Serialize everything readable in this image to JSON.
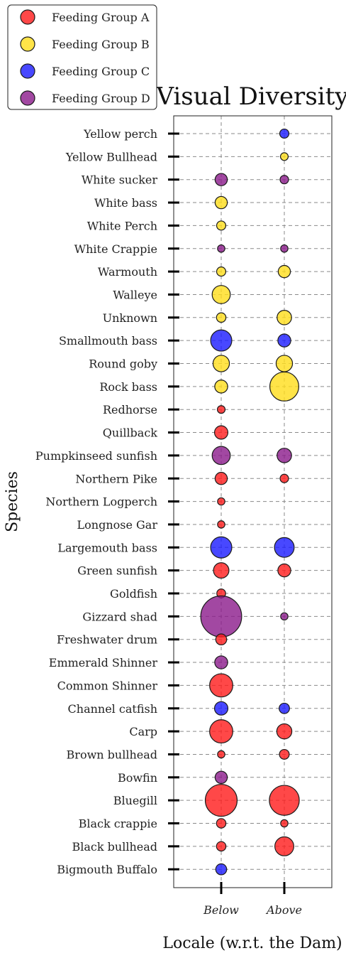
{
  "chart_data": {
    "type": "scatter",
    "title": "Visual Diversity",
    "xlabel": "Locale (w.r.t. the Dam)",
    "ylabel": "Species",
    "x_categories": [
      "Below",
      "Above"
    ],
    "y_categories": [
      "Yellow perch",
      "Yellow Bullhead",
      "White sucker",
      "White bass",
      "White Perch",
      "White Crappie",
      "Warmouth",
      "Walleye",
      "Unknown",
      "Smallmouth bass",
      "Round goby",
      "Rock bass",
      "Redhorse",
      "Quillback",
      "Pumpkinseed sunfish",
      "Northern Pike",
      "Northern Logperch",
      "Longnose Gar",
      "Largemouth bass",
      "Green sunfish",
      "Goldfish",
      "Gizzard shad",
      "Freshwater drum",
      "Emmerald Shinner",
      "Common Shinner",
      "Channel catfish",
      "Carp",
      "Brown bullhead",
      "Bowfin",
      "Bluegill",
      "Black crappie",
      "Black bullhead",
      "Bigmouth Buffalo"
    ],
    "grid": true,
    "legend_position": "top-left",
    "groups": [
      {
        "name": "Feeding Group A",
        "color": "#ff1a1a"
      },
      {
        "name": "Feeding Group B",
        "color": "#ffdd1a"
      },
      {
        "name": "Feeding Group C",
        "color": "#1a1aff"
      },
      {
        "name": "Feeding Group D",
        "color": "#8b1a8b"
      }
    ],
    "points": [
      {
        "species": "Yellow perch",
        "locale": "Above",
        "group": "Feeding Group C",
        "size": 1.4
      },
      {
        "species": "Yellow Bullhead",
        "locale": "Above",
        "group": "Feeding Group B",
        "size": 1.0
      },
      {
        "species": "White sucker",
        "locale": "Below",
        "group": "Feeding Group D",
        "size": 2.5
      },
      {
        "species": "White sucker",
        "locale": "Above",
        "group": "Feeding Group D",
        "size": 1.2
      },
      {
        "species": "White bass",
        "locale": "Below",
        "group": "Feeding Group B",
        "size": 2.5
      },
      {
        "species": "White Perch",
        "locale": "Below",
        "group": "Feeding Group B",
        "size": 1.4
      },
      {
        "species": "White Crappie",
        "locale": "Below",
        "group": "Feeding Group D",
        "size": 0.9
      },
      {
        "species": "White Crappie",
        "locale": "Above",
        "group": "Feeding Group D",
        "size": 0.9
      },
      {
        "species": "Warmouth",
        "locale": "Below",
        "group": "Feeding Group B",
        "size": 1.4
      },
      {
        "species": "Warmouth",
        "locale": "Above",
        "group": "Feeding Group B",
        "size": 2.5
      },
      {
        "species": "Walleye",
        "locale": "Below",
        "group": "Feeding Group B",
        "size": 5.5
      },
      {
        "species": "Unknown",
        "locale": "Below",
        "group": "Feeding Group B",
        "size": 1.5
      },
      {
        "species": "Unknown",
        "locale": "Above",
        "group": "Feeding Group B",
        "size": 3.5
      },
      {
        "species": "Smallmouth bass",
        "locale": "Below",
        "group": "Feeding Group C",
        "size": 7.5
      },
      {
        "species": "Smallmouth bass",
        "locale": "Above",
        "group": "Feeding Group C",
        "size": 2.8
      },
      {
        "species": "Round goby",
        "locale": "Below",
        "group": "Feeding Group B",
        "size": 4.5
      },
      {
        "species": "Round goby",
        "locale": "Above",
        "group": "Feeding Group B",
        "size": 4.5
      },
      {
        "species": "Rock bass",
        "locale": "Below",
        "group": "Feeding Group B",
        "size": 2.8
      },
      {
        "species": "Rock bass",
        "locale": "Above",
        "group": "Feeding Group B",
        "size": 14.0
      },
      {
        "species": "Redhorse",
        "locale": "Below",
        "group": "Feeding Group A",
        "size": 1.0
      },
      {
        "species": "Quillback",
        "locale": "Below",
        "group": "Feeding Group A",
        "size": 3.0
      },
      {
        "species": "Pumpkinseed sunfish",
        "locale": "Below",
        "group": "Feeding Group D",
        "size": 5.5
      },
      {
        "species": "Pumpkinseed sunfish",
        "locale": "Above",
        "group": "Feeding Group D",
        "size": 3.5
      },
      {
        "species": "Northern Pike",
        "locale": "Below",
        "group": "Feeding Group A",
        "size": 2.5
      },
      {
        "species": "Northern Pike",
        "locale": "Above",
        "group": "Feeding Group A",
        "size": 1.2
      },
      {
        "species": "Northern Logperch",
        "locale": "Below",
        "group": "Feeding Group A",
        "size": 0.9
      },
      {
        "species": "Longnose Gar",
        "locale": "Below",
        "group": "Feeding Group A",
        "size": 0.9
      },
      {
        "species": "Largemouth bass",
        "locale": "Below",
        "group": "Feeding Group C",
        "size": 7.5
      },
      {
        "species": "Largemouth bass",
        "locale": "Above",
        "group": "Feeding Group C",
        "size": 6.5
      },
      {
        "species": "Green sunfish",
        "locale": "Below",
        "group": "Feeding Group A",
        "size": 4.0
      },
      {
        "species": "Green sunfish",
        "locale": "Above",
        "group": "Feeding Group A",
        "size": 2.8
      },
      {
        "species": "Goldfish",
        "locale": "Below",
        "group": "Feeding Group A",
        "size": 1.3
      },
      {
        "species": "Gizzard shad",
        "locale": "Below",
        "group": "Feeding Group D",
        "size": 28.0
      },
      {
        "species": "Gizzard shad",
        "locale": "Above",
        "group": "Feeding Group D",
        "size": 0.9
      },
      {
        "species": "Freshwater drum",
        "locale": "Below",
        "group": "Feeding Group A",
        "size": 2.0
      },
      {
        "species": "Emmerald Shinner",
        "locale": "Below",
        "group": "Feeding Group D",
        "size": 2.8
      },
      {
        "species": "Common Shinner",
        "locale": "Below",
        "group": "Feeding Group A",
        "size": 9.0
      },
      {
        "species": "Channel catfish",
        "locale": "Below",
        "group": "Feeding Group C",
        "size": 3.0
      },
      {
        "species": "Channel catfish",
        "locale": "Above",
        "group": "Feeding Group C",
        "size": 1.8
      },
      {
        "species": "Carp",
        "locale": "Below",
        "group": "Feeding Group A",
        "size": 9.0
      },
      {
        "species": "Carp",
        "locale": "Above",
        "group": "Feeding Group A",
        "size": 3.8
      },
      {
        "species": "Brown bullhead",
        "locale": "Below",
        "group": "Feeding Group A",
        "size": 0.9
      },
      {
        "species": "Brown bullhead",
        "locale": "Above",
        "group": "Feeding Group A",
        "size": 1.6
      },
      {
        "species": "Bowfin",
        "locale": "Below",
        "group": "Feeding Group D",
        "size": 2.5
      },
      {
        "species": "Bluegill",
        "locale": "Below",
        "group": "Feeding Group A",
        "size": 17.0
      },
      {
        "species": "Bluegill",
        "locale": "Above",
        "group": "Feeding Group A",
        "size": 15.0
      },
      {
        "species": "Black crappie",
        "locale": "Below",
        "group": "Feeding Group A",
        "size": 1.5
      },
      {
        "species": "Black crappie",
        "locale": "Above",
        "group": "Feeding Group A",
        "size": 0.9
      },
      {
        "species": "Black bullhead",
        "locale": "Below",
        "group": "Feeding Group A",
        "size": 1.5
      },
      {
        "species": "Black bullhead",
        "locale": "Above",
        "group": "Feeding Group A",
        "size": 6.0
      },
      {
        "species": "Bigmouth Buffalo",
        "locale": "Below",
        "group": "Feeding Group C",
        "size": 2.0
      }
    ]
  }
}
